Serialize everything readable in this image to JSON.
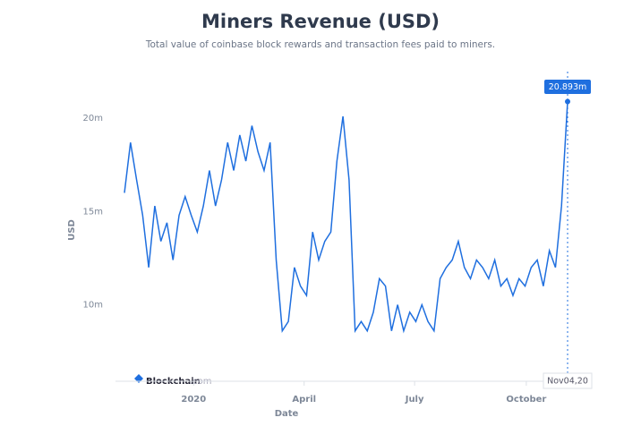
{
  "chart_data": {
    "type": "line",
    "title": "Miners Revenue (USD)",
    "subtitle": "Total value of coinbase block rewards and transaction fees paid to miners.",
    "x_label": "Date",
    "y_label": "USD",
    "x": [
      "2019-11-05",
      "2019-11-10",
      "2019-11-15",
      "2019-11-20",
      "2019-11-25",
      "2019-11-30",
      "2019-12-05",
      "2019-12-10",
      "2019-12-15",
      "2019-12-20",
      "2019-12-25",
      "2019-12-30",
      "2020-01-04",
      "2020-01-09",
      "2020-01-14",
      "2020-01-19",
      "2020-01-24",
      "2020-01-29",
      "2020-02-03",
      "2020-02-08",
      "2020-02-13",
      "2020-02-18",
      "2020-02-23",
      "2020-02-28",
      "2020-03-04",
      "2020-03-09",
      "2020-03-14",
      "2020-03-19",
      "2020-03-24",
      "2020-03-29",
      "2020-04-03",
      "2020-04-08",
      "2020-04-13",
      "2020-04-18",
      "2020-04-23",
      "2020-04-28",
      "2020-05-03",
      "2020-05-08",
      "2020-05-13",
      "2020-05-18",
      "2020-05-23",
      "2020-05-28",
      "2020-06-02",
      "2020-06-07",
      "2020-06-12",
      "2020-06-17",
      "2020-06-22",
      "2020-06-27",
      "2020-07-02",
      "2020-07-07",
      "2020-07-12",
      "2020-07-17",
      "2020-07-22",
      "2020-07-27",
      "2020-08-01",
      "2020-08-06",
      "2020-08-11",
      "2020-08-16",
      "2020-08-21",
      "2020-08-26",
      "2020-08-31",
      "2020-09-05",
      "2020-09-10",
      "2020-09-15",
      "2020-09-20",
      "2020-09-25",
      "2020-09-30",
      "2020-10-05",
      "2020-10-10",
      "2020-10-15",
      "2020-10-20",
      "2020-10-25",
      "2020-10-30",
      "2020-11-04"
    ],
    "series": [
      {
        "name": "Miners Revenue",
        "color": "#1f6fdf",
        "values": [
          16000000,
          18700000,
          16700000,
          14800000,
          12000000,
          15300000,
          13400000,
          14400000,
          12400000,
          14800000,
          15800000,
          14800000,
          13900000,
          15300000,
          17200000,
          15300000,
          16700000,
          18700000,
          17200000,
          19100000,
          17700000,
          19600000,
          18200000,
          17200000,
          18700000,
          12400000,
          8600000,
          9100000,
          12000000,
          11000000,
          10500000,
          13900000,
          12400000,
          13400000,
          13900000,
          17700000,
          20100000,
          16700000,
          8600000,
          9100000,
          8600000,
          9600000,
          11400000,
          11000000,
          8600000,
          10000000,
          8600000,
          9600000,
          9100000,
          10000000,
          9100000,
          8600000,
          11400000,
          12000000,
          12400000,
          13400000,
          12000000,
          11400000,
          12400000,
          12000000,
          11400000,
          12400000,
          11000000,
          11400000,
          10500000,
          11400000,
          11000000,
          12000000,
          12400000,
          11000000,
          12900000,
          12000000,
          15300000,
          20893000
        ]
      }
    ],
    "xlim": [
      "2019-11-05",
      "2020-11-04"
    ],
    "xticks": [
      {
        "value": "2020-01-01",
        "label": "2020"
      },
      {
        "value": "2020-04-01",
        "label": "April"
      },
      {
        "value": "2020-07-01",
        "label": "July"
      },
      {
        "value": "2020-10-01",
        "label": "October"
      }
    ],
    "ylim": [
      5900000,
      22500000
    ],
    "yticks": [
      {
        "value": 10000000,
        "label": "10m"
      },
      {
        "value": 15000000,
        "label": "15m"
      },
      {
        "value": 20000000,
        "label": "20m"
      }
    ],
    "grid": false,
    "tooltip": {
      "value_label": "20.893m",
      "date_label": "Nov04,20"
    },
    "watermark": [
      "Blockchain",
      ".com"
    ]
  }
}
